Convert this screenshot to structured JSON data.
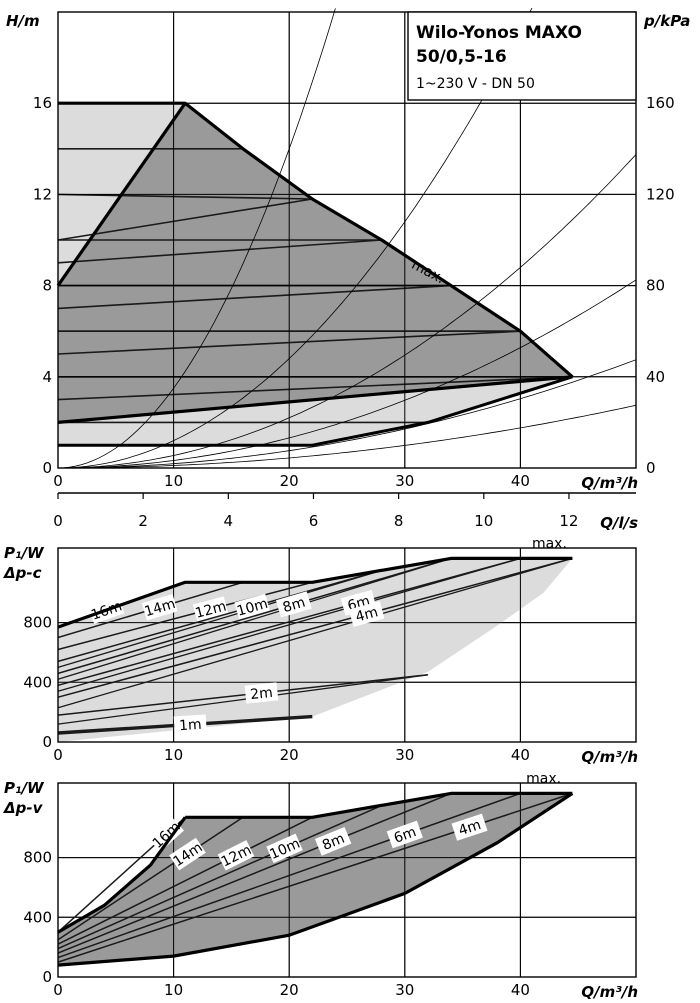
{
  "title": {
    "line1": "Wilo-Yonos MAXO",
    "line2": "50/0,5-16",
    "line3": "1~230 V - DN 50"
  },
  "colors": {
    "dark_fill": "#9a9a9a",
    "light_fill": "#dcdcdc",
    "line": "#1a1a1a"
  },
  "chart_data": [
    {
      "type": "line",
      "id": "head",
      "xlabel": "Q/m³/h",
      "ylabel": "H/m",
      "ylabel_right": "p/kPa",
      "secondary_xlabel": "Q/l/s",
      "xlim": [
        0,
        50
      ],
      "ylim": [
        0,
        20
      ],
      "xticks": [
        0,
        10,
        20,
        30,
        40
      ],
      "yticks": [
        0,
        4,
        8,
        12,
        16
      ],
      "yticks_right": [
        0,
        40,
        80,
        120,
        160
      ],
      "secondary_xticks": [
        0,
        2,
        4,
        6,
        8,
        10,
        12
      ],
      "grid": true,
      "max_label": "max.",
      "max_curve": [
        [
          0,
          16
        ],
        [
          11,
          16
        ],
        [
          16,
          14
        ],
        [
          22,
          11.8
        ],
        [
          28,
          10
        ],
        [
          34,
          8
        ],
        [
          40,
          6
        ],
        [
          44.5,
          4
        ]
      ],
      "dark_upper_boundary": [
        [
          0,
          8
        ],
        [
          11,
          16
        ],
        [
          16,
          14
        ],
        [
          22,
          11.8
        ],
        [
          28,
          10
        ],
        [
          34,
          8
        ],
        [
          40,
          6
        ],
        [
          44.5,
          4
        ]
      ],
      "dark_lower_boundary": [
        [
          0,
          2
        ],
        [
          44.5,
          4
        ]
      ],
      "light_region_left": [
        [
          0,
          16
        ],
        [
          11,
          16
        ],
        [
          0,
          8
        ]
      ],
      "light_region_bottom": [
        [
          0,
          1
        ],
        [
          22,
          1
        ],
        [
          32,
          2
        ],
        [
          44.5,
          4
        ],
        [
          0,
          2
        ]
      ],
      "constant_pressure_lines": [
        {
          "label": "16m",
          "values": [
            [
              0,
              16
            ],
            [
              11,
              16
            ]
          ]
        },
        {
          "label": "14m",
          "values": [
            [
              0,
              14
            ],
            [
              16,
              14
            ]
          ]
        },
        {
          "label": "12m",
          "values": [
            [
              0,
              12
            ],
            [
              22,
              11.8
            ]
          ]
        },
        {
          "label": "10m",
          "values": [
            [
              0,
              10
            ],
            [
              28,
              10
            ]
          ]
        },
        {
          "label": "8m",
          "values": [
            [
              0,
              8
            ],
            [
              34,
              8
            ]
          ]
        },
        {
          "label": "6m",
          "values": [
            [
              0,
              6
            ],
            [
              40,
              6
            ]
          ]
        },
        {
          "label": "4m",
          "values": [
            [
              0,
              4
            ],
            [
              44.5,
              4
            ]
          ]
        },
        {
          "label": "2m",
          "values": [
            [
              0,
              2
            ],
            [
              32,
              2
            ]
          ]
        },
        {
          "label": "1m",
          "values": [
            [
              0,
              1
            ],
            [
              22,
              1
            ]
          ]
        }
      ],
      "variable_lines": [
        {
          "values": [
            [
              0,
              3
            ],
            [
              44.5,
              4
            ]
          ]
        },
        {
          "values": [
            [
              0,
              4
            ],
            [
              44.5,
              4
            ]
          ]
        },
        {
          "values": [
            [
              0,
              5
            ],
            [
              40,
              6
            ]
          ]
        },
        {
          "values": [
            [
              0,
              6
            ],
            [
              40,
              6
            ]
          ]
        },
        {
          "values": [
            [
              0,
              7
            ],
            [
              34,
              8
            ]
          ]
        },
        {
          "values": [
            [
              0,
              8
            ],
            [
              34,
              8
            ]
          ]
        },
        {
          "values": [
            [
              0,
              9
            ],
            [
              28,
              10
            ]
          ]
        },
        {
          "values": [
            [
              0,
              10
            ],
            [
              22,
              11.8
            ]
          ]
        }
      ],
      "system_curve_k": [
        0.035,
        0.012,
        0.0055,
        0.0033,
        0.0019,
        0.0011
      ]
    },
    {
      "type": "line",
      "id": "power-dpc",
      "xlabel": "Q/m³/h",
      "ylabel": "P₁/W",
      "ylabel2": "Δp-c",
      "xlim": [
        0,
        50
      ],
      "ylim": [
        0,
        1300
      ],
      "xticks": [
        0,
        10,
        20,
        30,
        40
      ],
      "yticks": [
        0,
        400,
        800
      ],
      "grid": true,
      "max_label": "max.",
      "max_curve": [
        [
          0,
          770
        ],
        [
          11,
          1070
        ],
        [
          22,
          1070
        ],
        [
          34,
          1230
        ],
        [
          44.5,
          1230
        ]
      ],
      "series": [
        {
          "label": "16m",
          "values": [
            [
              0,
              770
            ],
            [
              11,
              1070
            ]
          ]
        },
        {
          "label": "14m",
          "values": [
            [
              0,
              700
            ],
            [
              16,
              1070
            ]
          ]
        },
        {
          "label": "12m",
          "values": [
            [
              0,
              620
            ],
            [
              22,
              1070
            ]
          ]
        },
        {
          "label": "10m",
          "values": [
            [
              0,
              540
            ],
            [
              28,
              1150
            ]
          ]
        },
        {
          "label": "8m",
          "values": [
            [
              0,
              460
            ],
            [
              34,
              1230
            ]
          ]
        },
        {
          "label": "6m",
          "values": [
            [
              0,
              380
            ],
            [
              40,
              1230
            ]
          ]
        },
        {
          "label": "4m",
          "values": [
            [
              0,
              300
            ],
            [
              44.5,
              1230
            ]
          ]
        },
        {
          "label": "2m",
          "values": [
            [
              0,
              180
            ],
            [
              32,
              450
            ]
          ]
        },
        {
          "label": "1m",
          "values": [
            [
              0,
              60
            ],
            [
              22,
              170
            ]
          ]
        }
      ]
    },
    {
      "type": "line",
      "id": "power-dpv",
      "xlabel": "Q/m³/h",
      "ylabel": "P₁/W",
      "ylabel2": "Δp-v",
      "xlim": [
        0,
        50
      ],
      "ylim": [
        0,
        1300
      ],
      "xticks": [
        0,
        10,
        20,
        30,
        40
      ],
      "yticks": [
        0,
        400,
        800
      ],
      "grid": true,
      "max_label": "max.",
      "max_curve": [
        [
          0,
          300
        ],
        [
          11,
          1070
        ],
        [
          22,
          1070
        ],
        [
          34,
          1230
        ],
        [
          44.5,
          1230
        ]
      ],
      "series": [
        {
          "label": "16m",
          "values": [
            [
              0,
              300
            ],
            [
              11,
              1070
            ]
          ]
        },
        {
          "label": "14m",
          "values": [
            [
              0,
              250
            ],
            [
              16,
              1070
            ]
          ]
        },
        {
          "label": "12m",
          "values": [
            [
              0,
              220
            ],
            [
              22,
              1070
            ]
          ]
        },
        {
          "label": "10m",
          "values": [
            [
              0,
              190
            ],
            [
              28,
              1150
            ]
          ]
        },
        {
          "label": "8m",
          "values": [
            [
              0,
              160
            ],
            [
              34,
              1230
            ]
          ]
        },
        {
          "label": "6m",
          "values": [
            [
              0,
              130
            ],
            [
              40,
              1230
            ]
          ]
        },
        {
          "label": "4m",
          "values": [
            [
              0,
              100
            ],
            [
              44.5,
              1230
            ]
          ]
        }
      ],
      "lower_boundary": [
        [
          0,
          80
        ],
        [
          44.5,
          1230
        ]
      ]
    }
  ]
}
